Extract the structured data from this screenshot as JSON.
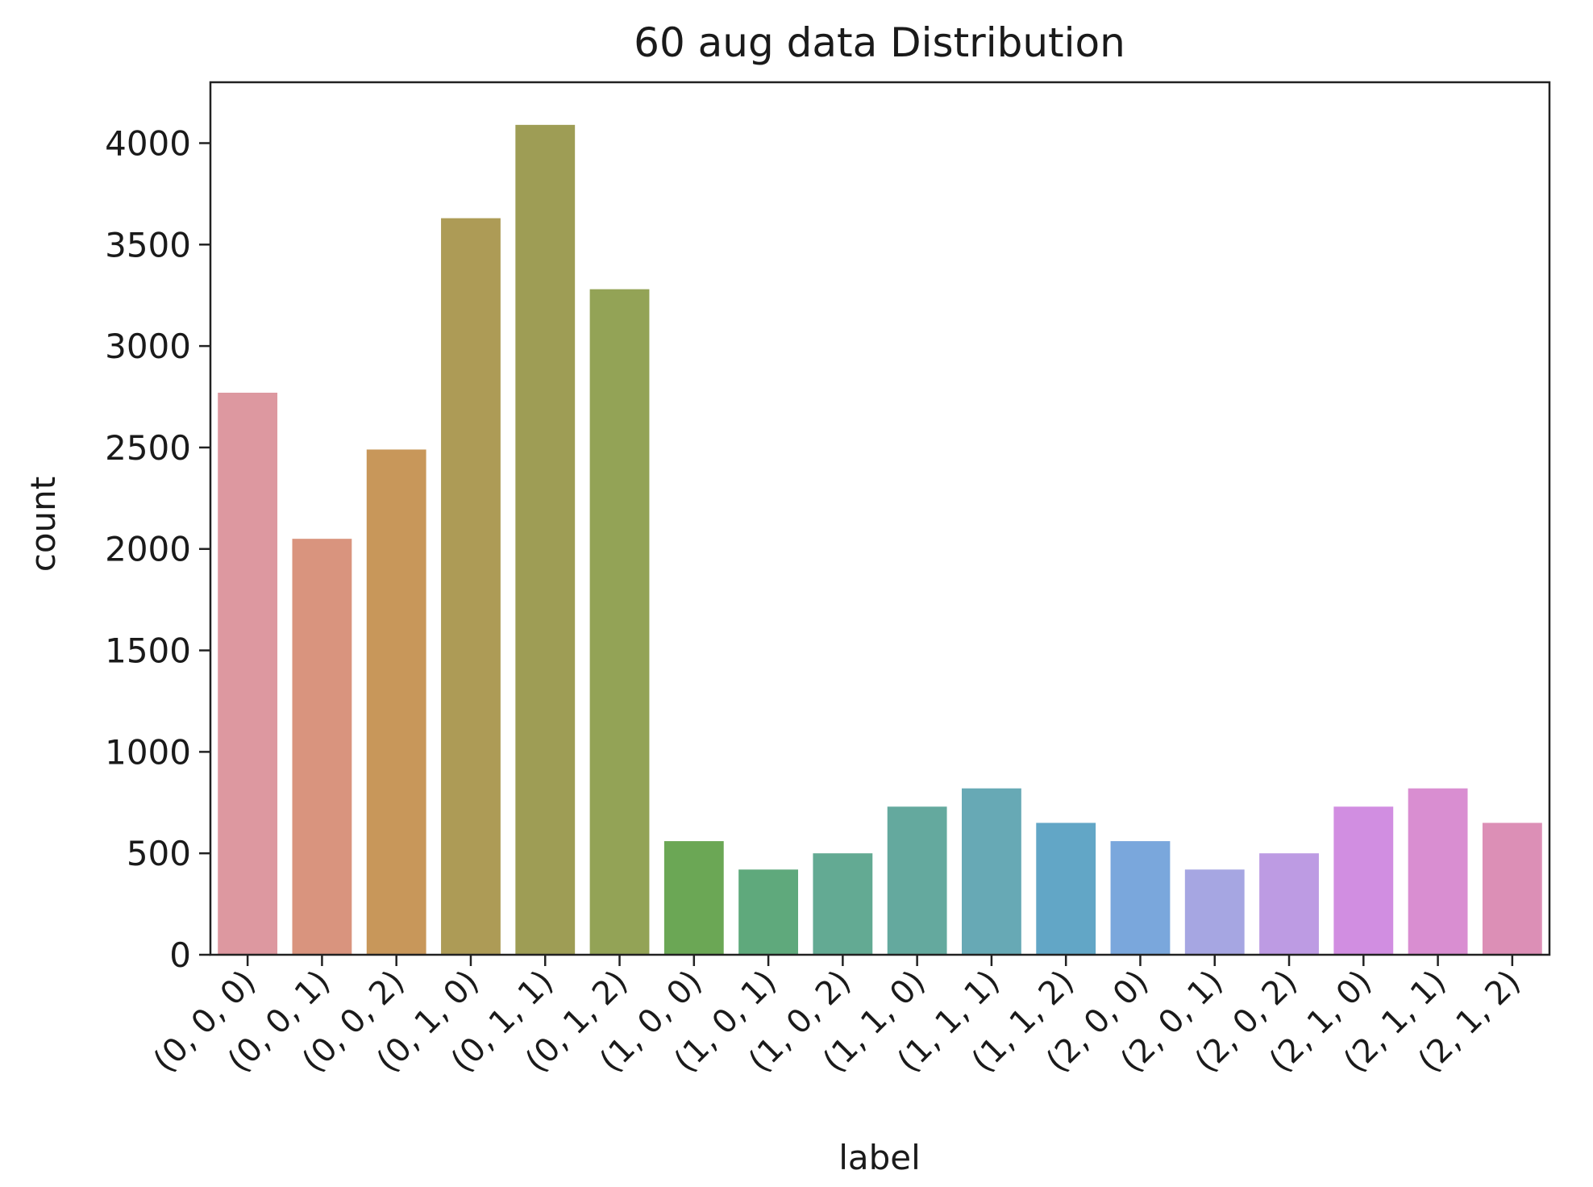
{
  "chart_data": {
    "type": "bar",
    "title": "60 aug data Distribution",
    "xlabel": "label",
    "ylabel": "count",
    "ylim": [
      0,
      4300
    ],
    "yticks": [
      0,
      500,
      1000,
      1500,
      2000,
      2500,
      3000,
      3500,
      4000
    ],
    "grid": false,
    "categories": [
      "(0, 0, 0)",
      "(0, 0, 1)",
      "(0, 0, 2)",
      "(0, 1, 0)",
      "(0, 1, 1)",
      "(0, 1, 2)",
      "(1, 0, 0)",
      "(1, 0, 1)",
      "(1, 0, 2)",
      "(1, 1, 0)",
      "(1, 1, 1)",
      "(1, 1, 2)",
      "(2, 0, 0)",
      "(2, 0, 1)",
      "(2, 0, 2)",
      "(2, 1, 0)",
      "(2, 1, 1)",
      "(2, 1, 2)"
    ],
    "values": [
      2770,
      2050,
      2490,
      3630,
      4090,
      3280,
      560,
      420,
      500,
      730,
      820,
      650,
      560,
      420,
      500,
      730,
      820,
      650
    ],
    "colors": [
      "#dd98a0",
      "#d9947e",
      "#c8975a",
      "#ad9b56",
      "#9e9d55",
      "#93a356",
      "#6ba755",
      "#5fa97c",
      "#63aa93",
      "#64a99e",
      "#67a9b5",
      "#62a6c6",
      "#7aa7dc",
      "#a6a6e2",
      "#bd9be3",
      "#d18ee1",
      "#d98ed1",
      "#dc8fb6"
    ]
  }
}
